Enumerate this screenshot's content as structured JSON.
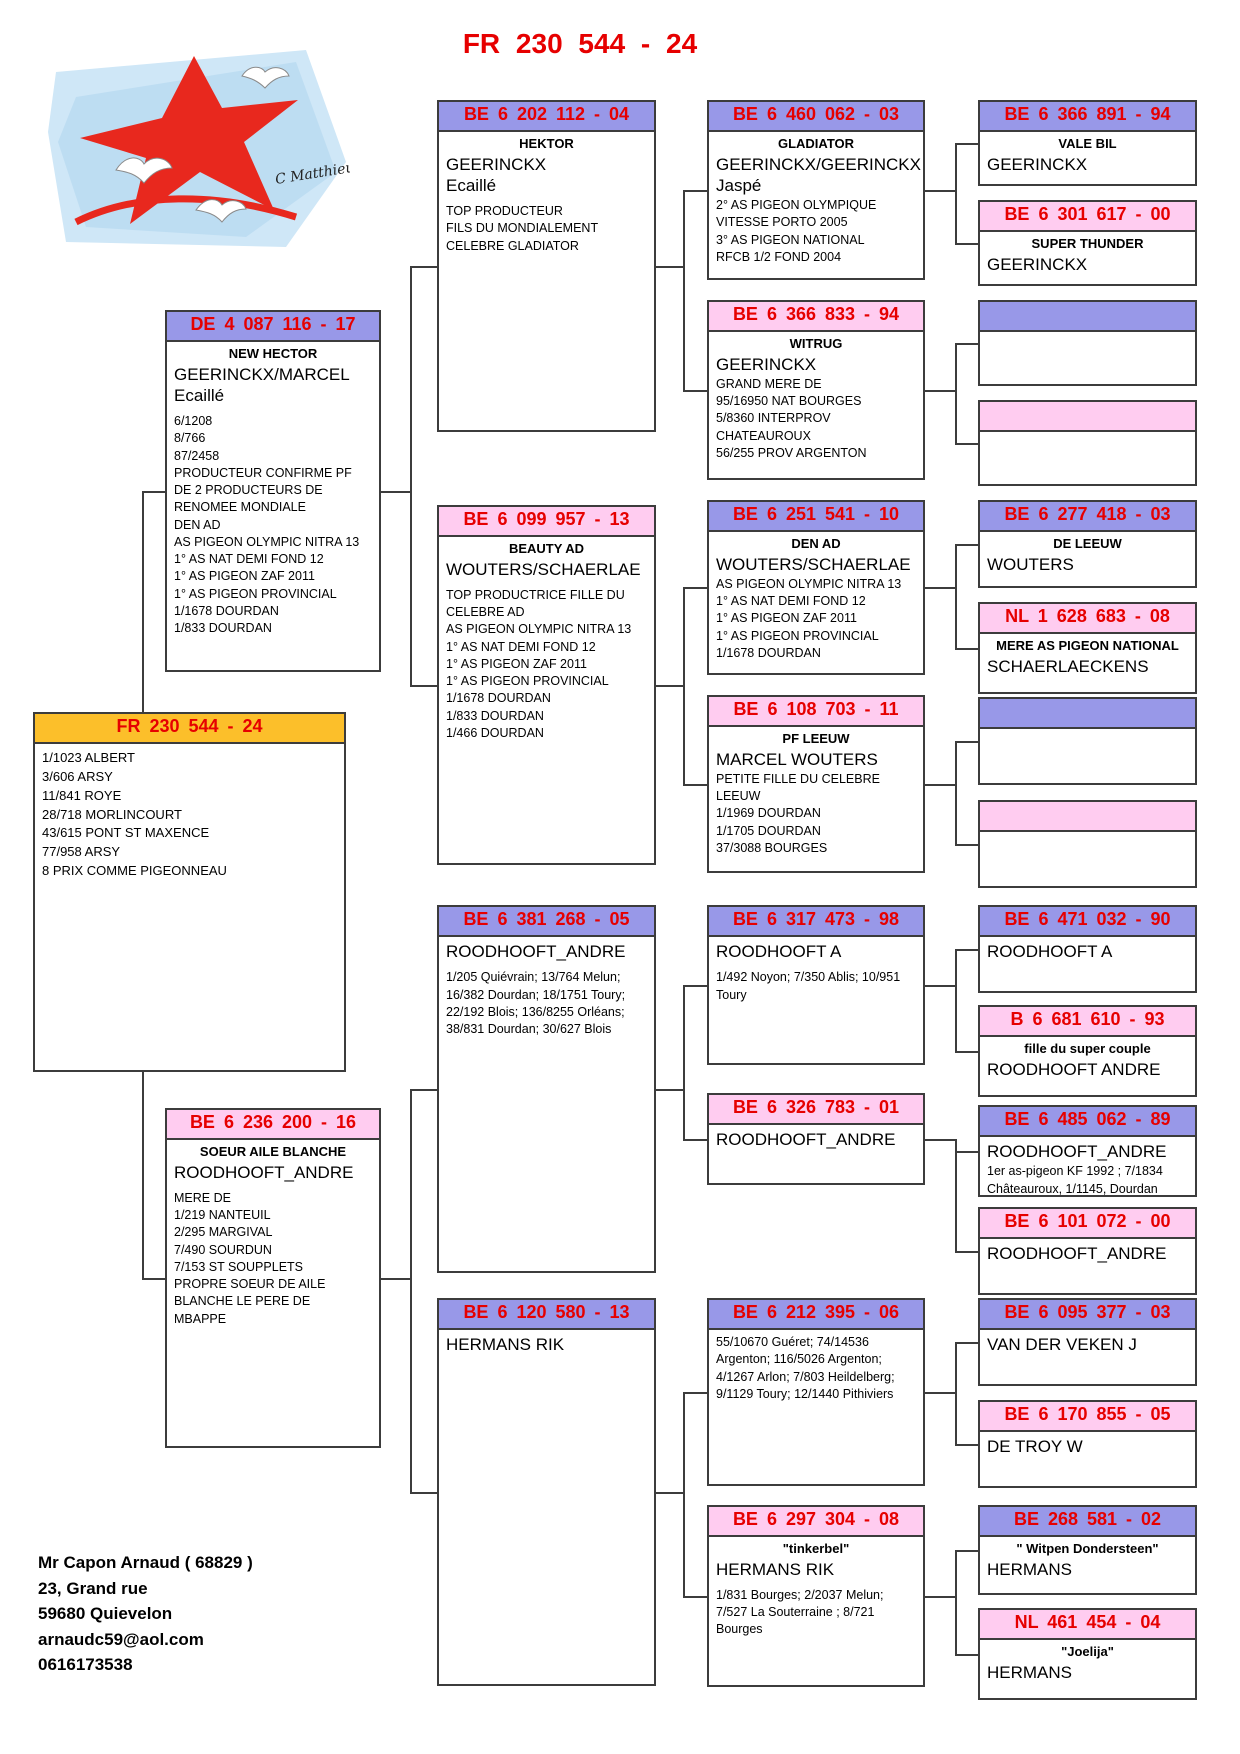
{
  "title": "FR 230 544 - 24",
  "logo": {
    "signature": "C Matthieu"
  },
  "contact": {
    "lines": [
      "Mr Capon Arnaud ( 68829 )",
      "23, Grand rue",
      "59680 Quievelon",
      "arnaudc59@aol.com",
      "0616173538"
    ]
  },
  "colors": {
    "male_header": "#9898e8",
    "female_header": "#ffccf0",
    "subject_header": "#fcbf2a",
    "ring_text": "#e60000",
    "line": "#3c3c3c"
  },
  "boxes": {
    "subject": {
      "ring": "FR 230 544 - 24",
      "details": [
        "1/1023 ALBERT",
        "3/606 ARSY",
        "11/841 ROYE",
        "28/718 MORLINCOURT",
        "43/615 PONT ST MAXENCE",
        "77/958 ARSY",
        "8 PRIX COMME PIGEONNEAU"
      ]
    },
    "newhector": {
      "ring": "DE 4 087 116 - 17",
      "name": "NEW HECTOR",
      "owner": [
        "GEERINCKX/MARCEL",
        "Ecaillé"
      ],
      "details": [
        "6/1208",
        "8/766",
        "87/2458",
        "PRODUCTEUR CONFIRME PF",
        "DE 2 PRODUCTEURS DE",
        "RENOMEE MONDIALE",
        "DEN AD",
        "AS PIGEON OLYMPIC NITRA 13",
        "1° AS NAT DEMI FOND 12",
        "1° AS PIGEON ZAF 2011",
        "1° AS PIGEON PROVINCIAL",
        "1/1678 DOURDAN",
        "1/833 DOURDAN"
      ]
    },
    "soeur": {
      "ring": "BE 6 236 200 - 16",
      "name": "SOEUR AILE BLANCHE",
      "owner": [
        "ROODHOOFT_ANDRE"
      ],
      "details": [
        "MERE DE",
        "1/219 NANTEUIL",
        "2/295 MARGIVAL",
        "7/490 SOURDUN",
        "7/153 ST SOUPPLETS",
        "PROPRE SOEUR DE AILE",
        "BLANCHE LE PERE DE",
        "MBAPPE"
      ]
    },
    "hektor": {
      "ring": "BE 6 202 112 - 04",
      "name": "HEKTOR",
      "owner": [
        "GEERINCKX",
        "Ecaillé"
      ],
      "details": [
        "TOP PRODUCTEUR",
        "FILS DU MONDIALEMENT",
        "CELEBRE GLADIATOR"
      ]
    },
    "beauty": {
      "ring": "BE 6 099 957 - 13",
      "name": "BEAUTY AD",
      "owner": [
        "WOUTERS/SCHAERLAE"
      ],
      "details": [
        "TOP PRODUCTRICE FILLE DU",
        "CELEBRE AD",
        "AS PIGEON OLYMPIC NITRA 13",
        "1° AS NAT DEMI FOND 12",
        "1° AS PIGEON ZAF 2011",
        "1° AS PIGEON PROVINCIAL",
        "1/1678 DOURDAN",
        "1/833 DOURDAN",
        "1/466 DOURDAN"
      ]
    },
    "rood05": {
      "ring": "BE 6 381 268 - 05",
      "owner": [
        "ROODHOOFT_ANDRE"
      ],
      "details": [
        "1/205 Quiévrain; 13/764 Melun;",
        "16/382 Dourdan; 18/1751 Toury;",
        "22/192 Blois; 136/8255 Orléans;",
        "38/831 Dourdan; 30/627 Blois"
      ]
    },
    "hermans13": {
      "ring": "BE 6 120 580 - 13",
      "owner": [
        "HERMANS RIK"
      ]
    },
    "gladiator": {
      "ring": "BE 6 460 062 - 03",
      "name": "GLADIATOR",
      "owner": [
        "GEERINCKX/GEERINCKX",
        "Jaspé"
      ],
      "details": [
        "2° AS PIGEON OLYMPIQUE",
        "VITESSE PORTO 2005",
        "3° AS PIGEON NATIONAL",
        "RFCB 1/2 FOND 2004"
      ]
    },
    "witrug": {
      "ring": "BE 6 366 833 - 94",
      "name": "WITRUG",
      "owner": [
        "GEERINCKX"
      ],
      "details": [
        "GRAND MERE DE",
        "95/16950 NAT BOURGES",
        "5/8360 INTERPROV",
        "CHATEAUROUX",
        "56/255 PROV ARGENTON"
      ]
    },
    "denad": {
      "ring": "BE 6 251 541 - 10",
      "name": "DEN AD",
      "owner": [
        "WOUTERS/SCHAERLAE"
      ],
      "details": [
        "AS PIGEON OLYMPIC NITRA 13",
        "1° AS NAT DEMI FOND 12",
        "1° AS PIGEON ZAF 2011",
        "1° AS PIGEON PROVINCIAL",
        "1/1678 DOURDAN"
      ]
    },
    "pfleeuw": {
      "ring": "BE 6 108 703 - 11",
      "name": "PF LEEUW",
      "owner": [
        "MARCEL WOUTERS"
      ],
      "details": [
        "PETITE FILLE DU CELEBRE",
        "LEEUW",
        "1/1969 DOURDAN",
        "1/1705 DOURDAN",
        "37/3088 BOURGES"
      ]
    },
    "roodA98": {
      "ring": "BE 6 317 473 - 98",
      "owner": [
        "ROODHOOFT A"
      ],
      "details": [
        "1/492 Noyon; 7/350 Ablis; 10/951",
        "Toury"
      ]
    },
    "rood01": {
      "ring": "BE 6 326 783 - 01",
      "owner": [
        "ROODHOOFT_ANDRE"
      ]
    },
    "herm06": {
      "ring": "BE 6 212 395 - 06",
      "details": [
        "55/10670 Guéret; 74/14536",
        "Argenton; 116/5026 Argenton;",
        "4/1267 Arlon; 7/803 Heildelberg;",
        "9/1129 Toury; 12/1440 Pithiviers"
      ]
    },
    "tinkerbel": {
      "ring": "BE 6 297 304 - 08",
      "name": "\"tinkerbel\"",
      "owner": [
        "HERMANS RIK"
      ],
      "details": [
        "1/831 Bourges; 2/2037 Melun;",
        "7/527 La Souterraine ; 8/721",
        "Bourges"
      ]
    },
    "valebil": {
      "ring": "BE 6 366 891 - 94",
      "name": "VALE BIL",
      "owner": [
        "GEERINCKX"
      ]
    },
    "superthunder": {
      "ring": "BE 6 301 617 - 00",
      "name": "SUPER THUNDER",
      "owner": [
        "GEERINCKX"
      ]
    },
    "deleeuw": {
      "ring": "BE 6 277 418 - 03",
      "name": "DE LEEUW",
      "owner": [
        "WOUTERS"
      ]
    },
    "schaerl": {
      "ring": "NL 1 628 683 - 08",
      "name": "MERE AS PIGEON NATIONAL",
      "owner": [
        "SCHAERLAECKENS"
      ]
    },
    "roodA90": {
      "ring": "BE 6 471 032 - 90",
      "owner": [
        "ROODHOOFT A"
      ]
    },
    "fille93": {
      "ring": "B 6 681 610 - 93",
      "name": "fille du super couple",
      "owner": [
        "ROODHOOFT ANDRE"
      ]
    },
    "rood89": {
      "ring": "BE 6 485 062 - 89",
      "owner": [
        "ROODHOOFT_ANDRE"
      ],
      "details": [
        "1er as-pigeon KF 1992 ; 7/1834",
        "Châteauroux, 1/1145, Dourdan"
      ]
    },
    "rood00": {
      "ring": "BE 6 101 072 - 00",
      "owner": [
        "ROODHOOFT_ANDRE"
      ]
    },
    "veken": {
      "ring": "BE 6 095 377 - 03",
      "owner": [
        "VAN DER VEKEN J"
      ]
    },
    "detroy": {
      "ring": "BE 6 170 855 - 05",
      "owner": [
        "DE TROY W"
      ]
    },
    "witpen": {
      "ring": "BE 268 581 - 02",
      "name": "\" Witpen Dondersteen\"",
      "owner": [
        "HERMANS"
      ]
    },
    "joelija": {
      "ring": "NL 461 454 - 04",
      "name": "\"Joelija\"",
      "owner": [
        "HERMANS"
      ]
    }
  }
}
